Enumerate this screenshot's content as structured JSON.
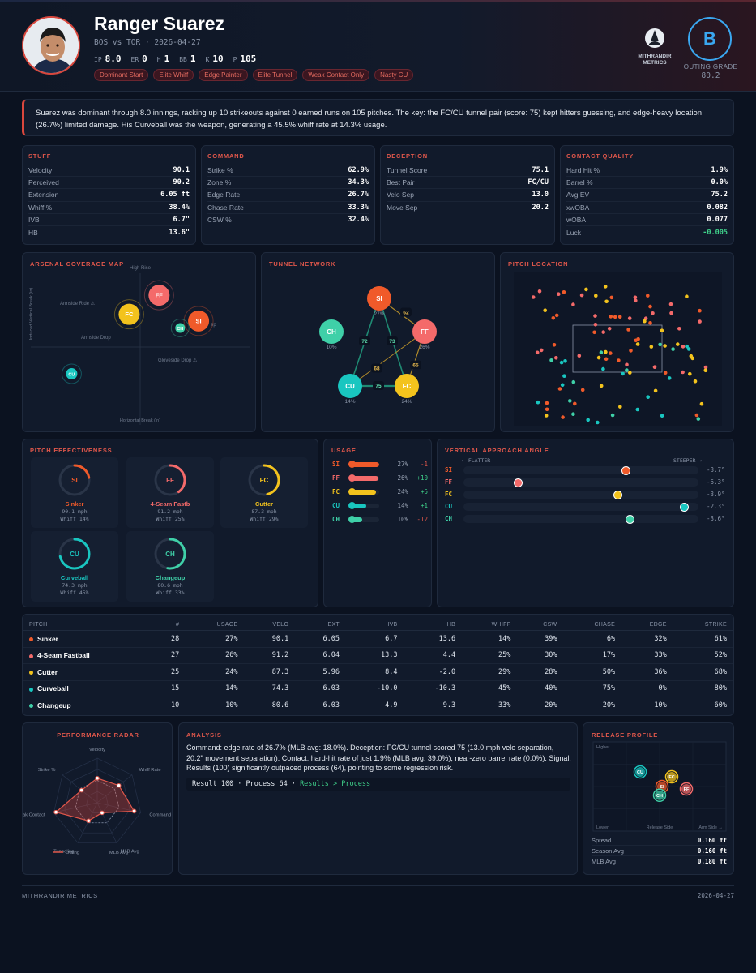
{
  "header": {
    "name": "Ranger Suarez",
    "subtitle": "BOS vs TOR · 2026-04-27",
    "stats": [
      {
        "k": "IP",
        "v": "8.0"
      },
      {
        "k": "ER",
        "v": "0"
      },
      {
        "k": "H",
        "v": "1"
      },
      {
        "k": "BB",
        "v": "1"
      },
      {
        "k": "K",
        "v": "10"
      },
      {
        "k": "P",
        "v": "105"
      }
    ],
    "tags": [
      "Dominant Start",
      "Elite Whiff",
      "Edge Painter",
      "Elite Tunnel",
      "Weak Contact Only",
      "Nasty CU"
    ],
    "logo_line1": "MITHRANDIR",
    "logo_line2": "METRICS",
    "grade": "B",
    "grade_label": "OUTING GRADE",
    "grade_score": "80.2"
  },
  "summary": "Suarez was dominant through 8.0 innings, racking up 10 strikeouts against 0 earned runs on 105 pitches. The key: the FC/CU tunnel pair (score: 75) kept hitters guessing, and edge-heavy location (26.7%) limited damage. His Curveball was the weapon, generating a 45.5% whiff rate at 14.3% usage.",
  "stuff": {
    "title": "STUFF",
    "rows": [
      [
        "Velocity",
        "90.1"
      ],
      [
        "Perceived",
        "90.2"
      ],
      [
        "Extension",
        "6.05 ft"
      ],
      [
        "Whiff %",
        "38.4%"
      ],
      [
        "IVB",
        "6.7\""
      ],
      [
        "HB",
        "13.6\""
      ]
    ]
  },
  "command": {
    "title": "COMMAND",
    "rows": [
      [
        "Strike %",
        "62.9%"
      ],
      [
        "Zone %",
        "34.3%"
      ],
      [
        "Edge Rate",
        "26.7%"
      ],
      [
        "Chase Rate",
        "33.3%"
      ],
      [
        "CSW %",
        "32.4%"
      ]
    ]
  },
  "deception": {
    "title": "DECEPTION",
    "rows": [
      [
        "Tunnel Score",
        "75.1"
      ],
      [
        "Best Pair",
        "FC/CU"
      ],
      [
        "Velo Sep",
        "13.0"
      ],
      [
        "Move Sep",
        "20.2"
      ]
    ]
  },
  "contact": {
    "title": "CONTACT QUALITY",
    "rows": [
      [
        "Hard Hit %",
        "1.9%"
      ],
      [
        "Barrel %",
        "0.0%"
      ],
      [
        "Avg EV",
        "75.2"
      ],
      [
        "xwOBA",
        "0.082"
      ],
      [
        "wOBA",
        "0.077"
      ],
      [
        "Luck",
        "-0.005"
      ]
    ]
  },
  "colors": {
    "SI": "#f05a2a",
    "FF": "#f46a6a",
    "FC": "#f3c31d",
    "CU": "#19c6c0",
    "CH": "#3fd0a8",
    "accent": "#e0574b",
    "grade": "#3aa7f0"
  },
  "arsenal": {
    "title": "ARSENAL COVERAGE MAP",
    "labels": {
      "top": "High Rise",
      "armside_ride": "Armside Ride ⚠",
      "armside_drop": "Armside Drop",
      "glove_drop": "Gloveside Drop ⚠",
      "ylabel": "Induced Vertical Break (in)",
      "xlabel": "Horizontal Break (in)",
      "ep": "ep"
    },
    "pitches": [
      {
        "code": "FF",
        "hb": 4.4,
        "ivb": 13.3
      },
      {
        "code": "FC",
        "hb": -2.0,
        "ivb": 8.4
      },
      {
        "code": "SI",
        "hb": 13.6,
        "ivb": 6.7
      },
      {
        "code": "CH",
        "hb": 9.3,
        "ivb": 4.9
      },
      {
        "code": "CU",
        "hb": -10.3,
        "ivb": -10.0
      }
    ]
  },
  "tunnel": {
    "title": "TUNNEL NETWORK",
    "nodes": [
      {
        "code": "SI",
        "pct": "27%"
      },
      {
        "code": "FF",
        "pct": "26%"
      },
      {
        "code": "FC",
        "pct": "24%"
      },
      {
        "code": "CU",
        "pct": "14%"
      },
      {
        "code": "CH",
        "pct": "10%"
      }
    ],
    "edges": [
      {
        "a": "SI",
        "b": "FF",
        "score": "62"
      },
      {
        "a": "SI",
        "b": "CU",
        "score": "72"
      },
      {
        "a": "SI",
        "b": "FC",
        "score": "73"
      },
      {
        "a": "FF",
        "b": "CU",
        "score": "68"
      },
      {
        "a": "FF",
        "b": "FC",
        "score": "65"
      },
      {
        "a": "CU",
        "b": "FC",
        "score": "75"
      }
    ]
  },
  "location": {
    "title": "PITCH LOCATION"
  },
  "effectiveness": {
    "title": "PITCH EFFECTIVENESS",
    "cards": [
      {
        "code": "SI",
        "name": "Sinker",
        "velo": "90.1 mph",
        "whiff": "Whiff 14%",
        "pct": 0.14
      },
      {
        "code": "FF",
        "name": "4-Seam Fastb",
        "velo": "91.2 mph",
        "whiff": "Whiff 25%",
        "pct": 0.25
      },
      {
        "code": "FC",
        "name": "Cutter",
        "velo": "87.3 mph",
        "whiff": "Whiff 29%",
        "pct": 0.29
      },
      {
        "code": "CU",
        "name": "Curveball",
        "velo": "74.3 mph",
        "whiff": "Whiff 45%",
        "pct": 0.45
      },
      {
        "code": "CH",
        "name": "Changeup",
        "velo": "80.6 mph",
        "whiff": "Whiff 33%",
        "pct": 0.33
      }
    ]
  },
  "usage": {
    "title": "USAGE",
    "rows": [
      {
        "code": "SI",
        "pct": "27%",
        "delta": "-1",
        "v": 27
      },
      {
        "code": "FF",
        "pct": "26%",
        "delta": "+10",
        "v": 26
      },
      {
        "code": "FC",
        "pct": "24%",
        "delta": "+5",
        "v": 24
      },
      {
        "code": "CU",
        "pct": "14%",
        "delta": "+1",
        "v": 14
      },
      {
        "code": "CH",
        "pct": "10%",
        "delta": "-12",
        "v": 10
      }
    ]
  },
  "vaa": {
    "title": "VERTICAL APPROACH ANGLE",
    "flatter": "← FLATTER",
    "steeper": "STEEPER →",
    "rows": [
      {
        "code": "SI",
        "val": "-3.7°",
        "v": -3.7
      },
      {
        "code": "FF",
        "val": "-6.3°",
        "v": -6.3
      },
      {
        "code": "FC",
        "val": "-3.9°",
        "v": -3.9
      },
      {
        "code": "CU",
        "val": "-2.3°",
        "v": -2.3
      },
      {
        "code": "CH",
        "val": "-3.6°",
        "v": -3.6
      }
    ]
  },
  "table": {
    "headers": [
      "PITCH",
      "#",
      "USAGE",
      "VELO",
      "EXT",
      "IVB",
      "HB",
      "WHIFF",
      "CSW",
      "CHASE",
      "EDGE",
      "STRIKE"
    ],
    "rows": [
      {
        "code": "SI",
        "cells": [
          "Sinker",
          "28",
          "27%",
          "90.1",
          "6.05",
          "6.7",
          "13.6",
          "14%",
          "39%",
          "6%",
          "32%",
          "61%"
        ]
      },
      {
        "code": "FF",
        "cells": [
          "4-Seam Fastball",
          "27",
          "26%",
          "91.2",
          "6.04",
          "13.3",
          "4.4",
          "25%",
          "30%",
          "17%",
          "33%",
          "52%"
        ]
      },
      {
        "code": "FC",
        "cells": [
          "Cutter",
          "25",
          "24%",
          "87.3",
          "5.96",
          "8.4",
          "-2.0",
          "29%",
          "28%",
          "50%",
          "36%",
          "68%"
        ]
      },
      {
        "code": "CU",
        "cells": [
          "Curveball",
          "15",
          "14%",
          "74.3",
          "6.03",
          "-10.0",
          "-10.3",
          "45%",
          "40%",
          "75%",
          "0%",
          "80%"
        ]
      },
      {
        "code": "CH",
        "cells": [
          "Changeup",
          "10",
          "10%",
          "80.6",
          "6.03",
          "4.9",
          "9.3",
          "33%",
          "20%",
          "20%",
          "10%",
          "60%"
        ]
      }
    ]
  },
  "radar": {
    "title": "PERFORMANCE RADAR",
    "axes": [
      "Velocity",
      "Whiff Rate",
      "Command",
      "MLB Avg",
      "Tunneling",
      "Weak Contact",
      "Strike %"
    ],
    "outing": [
      0.55,
      0.62,
      0.85,
      0.25,
      0.45,
      0.95,
      0.45
    ],
    "mlb": [
      0.5,
      0.5,
      0.5,
      0.5,
      0.5,
      0.5,
      0.5
    ],
    "legend_outing": "Outing",
    "legend_mlb": "MLB Avg"
  },
  "analysis": {
    "title": "ANALYSIS",
    "text": "Command: edge rate of 26.7% (MLB avg: 18.0%). Deception: FC/CU tunnel scored 75 (13.0 mph velo separation, 20.2\" movement separation). Contact: hard-hit rate of just 1.9% (MLB avg: 39.0%), near-zero barrel rate (0.0%). Signal: Results (100) significantly outpaced process (64), pointing to some regression risk.",
    "result_line": "Result 100 · Process 64 ·",
    "result_tag": "Results > Process"
  },
  "release": {
    "title": "RELEASE PROFILE",
    "labels": {
      "higher": "Higher",
      "lower": "Lower",
      "side": "Release Side",
      "arm": "Arm Side →"
    },
    "pitches": [
      {
        "code": "CU",
        "side": -0.4,
        "height": 0.3
      },
      {
        "code": "FC",
        "side": 0.25,
        "height": 0.2
      },
      {
        "code": "SI",
        "side": 0.05,
        "height": 0.0
      },
      {
        "code": "FF",
        "side": 0.55,
        "height": -0.05
      },
      {
        "code": "CH",
        "side": 0.0,
        "height": -0.18
      }
    ],
    "rows": [
      [
        "Spread",
        "0.160 ft"
      ],
      [
        "Season Avg",
        "0.160 ft"
      ],
      [
        "MLB Avg",
        "0.180 ft"
      ]
    ]
  },
  "footer": {
    "left": "MITHRANDIR METRICS",
    "right": "2026-04-27"
  }
}
